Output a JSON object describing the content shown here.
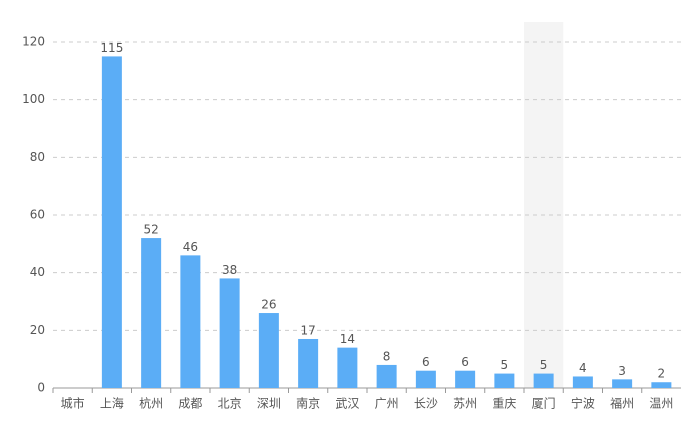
{
  "chart_data": {
    "type": "bar",
    "categories": [
      "城市",
      "上海",
      "杭州",
      "成都",
      "北京",
      "深圳",
      "南京",
      "武汉",
      "广州",
      "长沙",
      "苏州",
      "重庆",
      "厦门",
      "宁波",
      "福州",
      "温州"
    ],
    "values": [
      null,
      115,
      52,
      46,
      38,
      26,
      17,
      14,
      8,
      6,
      6,
      5,
      5,
      4,
      3,
      2
    ],
    "color": "#5badf6",
    "ylim": [
      0,
      120
    ],
    "yticks": [
      0,
      20,
      40,
      60,
      80,
      100,
      120
    ],
    "grid": true
  }
}
